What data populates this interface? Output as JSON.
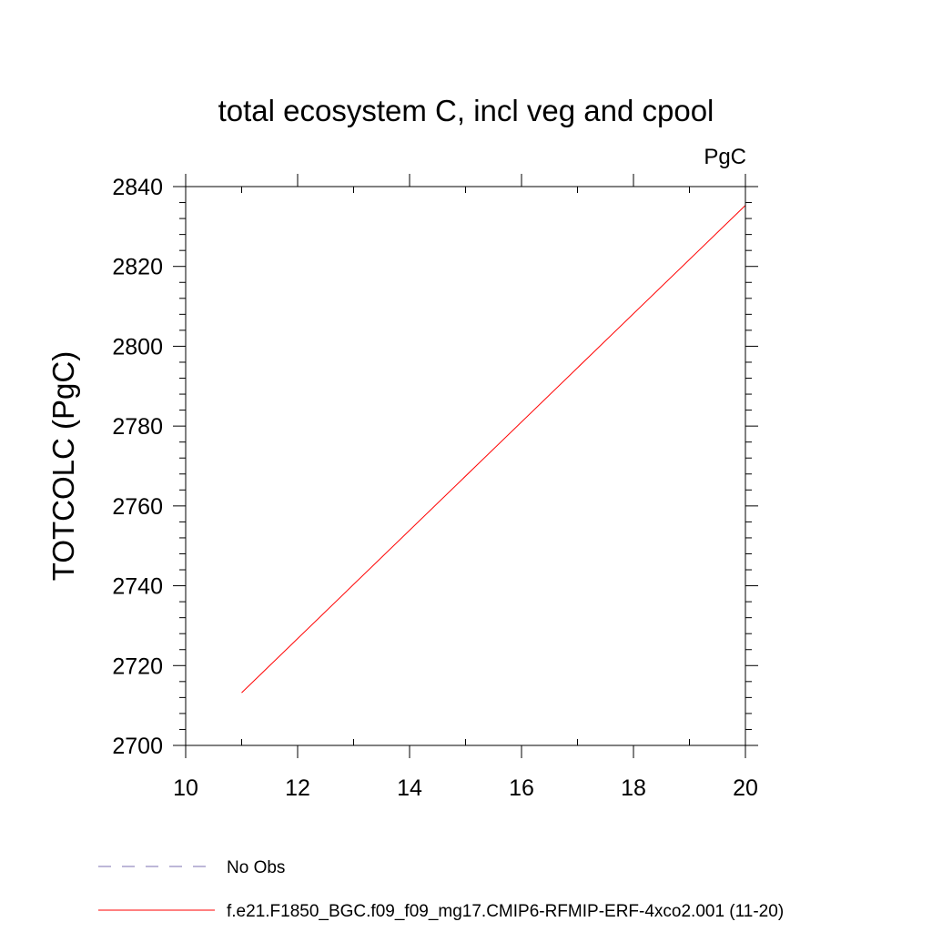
{
  "chart_data": {
    "type": "line",
    "title": "total ecosystem C, incl veg and cpool",
    "units_label": "PgC",
    "ylabel": "TOTCOLC  (PgC)",
    "xlabel": "",
    "xlim": [
      10,
      20
    ],
    "ylim": [
      2700,
      2840
    ],
    "x_ticks": [
      10,
      12,
      14,
      16,
      18,
      20
    ],
    "y_ticks": [
      2700,
      2720,
      2740,
      2760,
      2780,
      2800,
      2820,
      2840
    ],
    "x_minor_step": 1,
    "y_minor_step": 4,
    "grid": false,
    "legend_position": "bottom-left",
    "series": [
      {
        "name": "No Obs",
        "color": "#7b6fb0",
        "dash": "dashed",
        "x": [],
        "y": []
      },
      {
        "name": "f.e21.F1850_BGC.f09_f09_mg17.CMIP6-RFMIP-ERF-4xco2.001 (11-20)",
        "color": "#ff0000",
        "dash": "solid",
        "x": [
          11,
          20
        ],
        "y": [
          2713.2,
          2835.3
        ]
      }
    ]
  }
}
